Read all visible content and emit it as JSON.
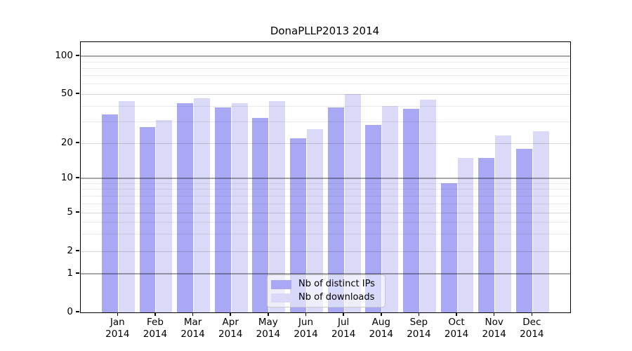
{
  "title": "DonaPLLP2013 2014",
  "chart_data": {
    "type": "bar",
    "title": "DonaPLLP2013 2014",
    "categories": [
      "Jan",
      "Feb",
      "Mar",
      "Apr",
      "May",
      "Jun",
      "Jul",
      "Aug",
      "Sep",
      "Oct",
      "Nov",
      "Dec"
    ],
    "year_label": "2014",
    "series": [
      {
        "name": "Nb of distinct IPs",
        "color": "#a8a8f5",
        "values": [
          34,
          27,
          42,
          39,
          32,
          22,
          39,
          28,
          38,
          9,
          15,
          18
        ]
      },
      {
        "name": "Nb of downloads",
        "color": "#dadaf8",
        "values": [
          44,
          31,
          46,
          42,
          44,
          26,
          50,
          40,
          45,
          15,
          23,
          25
        ]
      }
    ],
    "xlabel": "",
    "ylabel": "",
    "y_axis": {
      "scale": "log-like",
      "ticks": [
        0,
        1,
        2,
        5,
        10,
        20,
        50,
        100
      ],
      "minor_gridlines": [
        3,
        4,
        6,
        7,
        8,
        9,
        30,
        40,
        60,
        70,
        80,
        90
      ],
      "ylim": [
        0,
        120
      ]
    },
    "grid": true,
    "legend_position": "bottom-center"
  }
}
